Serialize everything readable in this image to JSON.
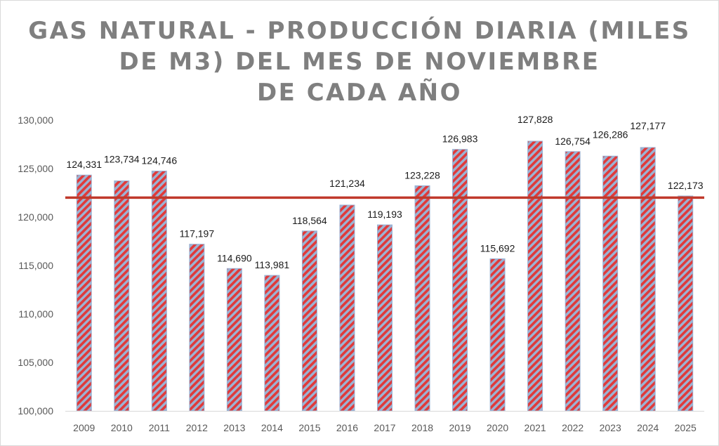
{
  "chart_data": {
    "type": "bar",
    "title_lines": [
      "GAS NATURAL - PRODUCCIÓN DIARIA (MILES",
      "DE M3) DEL MES DE NOVIEMBRE",
      "DE CADA AÑO"
    ],
    "categories": [
      "2009",
      "2010",
      "2011",
      "2012",
      "2013",
      "2014",
      "2015",
      "2016",
      "2017",
      "2018",
      "2019",
      "2020",
      "2021",
      "2022",
      "2023",
      "2024",
      "2025"
    ],
    "values": [
      124331,
      123734,
      124746,
      117197,
      114690,
      113981,
      118564,
      121234,
      119193,
      123228,
      126983,
      115692,
      127828,
      126754,
      126286,
      127177,
      122173
    ],
    "value_labels": [
      "124,331",
      "123,734",
      "124,746",
      "117,197",
      "114,690",
      "113,981",
      "118,564",
      "121,234",
      "119,193",
      "123,228",
      "126,983",
      "115,692",
      "127,828",
      "126,754",
      "126,286",
      "127,177",
      "122,173"
    ],
    "label_offsets": [
      0,
      1,
      0,
      0,
      0,
      0,
      0,
      1,
      0,
      0,
      0,
      0,
      1,
      0,
      1,
      1,
      0
    ],
    "ylim": [
      100000,
      130000
    ],
    "yticks": [
      100000,
      105000,
      110000,
      115000,
      120000,
      125000,
      130000
    ],
    "ytick_labels": [
      "100,000",
      "105,000",
      "110,000",
      "115,000",
      "120,000",
      "125,000",
      "130,000"
    ],
    "reference_line": 122000,
    "grid": false,
    "colors": {
      "bar_stripe": "#e03a3a",
      "bar_bg": "#9bb3d4",
      "reference": "#c0392b",
      "axis": "#d9d9d9"
    }
  }
}
